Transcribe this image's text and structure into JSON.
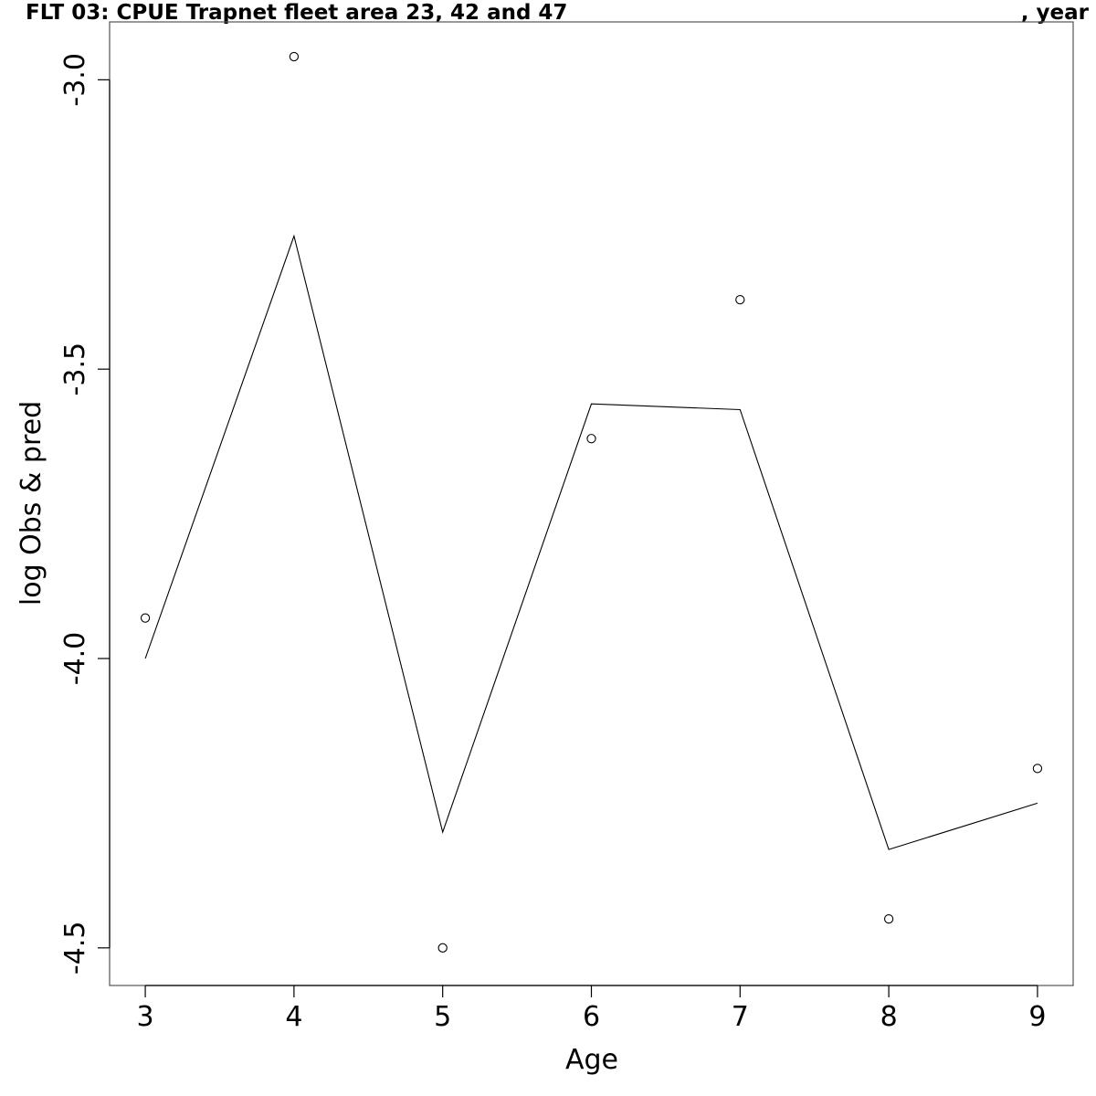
{
  "chart_data": {
    "type": "line",
    "title": "FLT 03: CPUE Trapnet fleet area 23, 42 and 47",
    "title_suffix": ", year",
    "xlabel": "Age",
    "ylabel": "log Obs & pred",
    "x_ticks": [
      3,
      4,
      5,
      6,
      7,
      8,
      9
    ],
    "x_tick_labels": [
      "3",
      "4",
      "5",
      "6",
      "7",
      "8",
      "9"
    ],
    "y_ticks": [
      -3.0,
      -3.5,
      -4.0,
      -4.5
    ],
    "y_tick_labels": [
      "-3.0",
      "-3.5",
      "-4.0",
      "-4.5"
    ],
    "xlim": [
      2.76,
      9.24
    ],
    "ylim": [
      -4.565,
      -2.9
    ],
    "grid": false,
    "legend": "none",
    "series": [
      {
        "style": "points",
        "marker": "open-circle",
        "x": [
          3,
          4,
          5,
          6,
          7,
          8,
          9
        ],
        "values": [
          -3.93,
          -2.96,
          -4.5,
          -3.62,
          -3.38,
          -4.45,
          -4.19
        ]
      },
      {
        "style": "line",
        "x": [
          3,
          4,
          5,
          6,
          7,
          8,
          9
        ],
        "values": [
          -4.0,
          -3.27,
          -4.3,
          -3.56,
          -3.57,
          -4.33,
          -4.25
        ]
      }
    ],
    "colors": {
      "line": "#000000",
      "points": "#000000",
      "axes": "#000000",
      "box": "#555555"
    }
  }
}
